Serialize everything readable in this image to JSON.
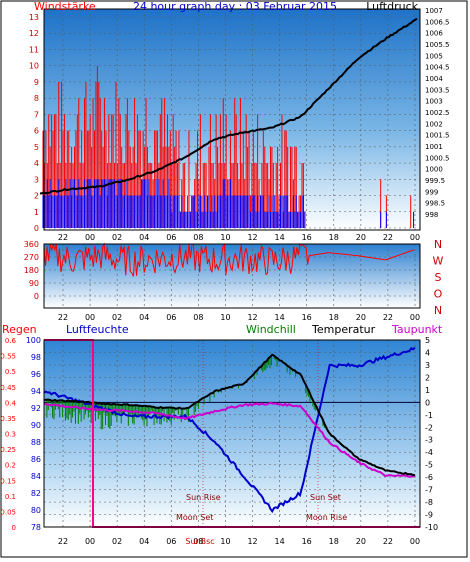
{
  "title": "24 hour graph day : 03 Februar 2015",
  "x_tick_labels": [
    "22",
    "00",
    "02",
    "04",
    "06",
    "08",
    "10",
    "12",
    "14",
    "16",
    "18",
    "20",
    "22",
    "00"
  ],
  "top_panel": {
    "left_label": "Windstärke",
    "right_label": "Luftdruck",
    "left_ticks": [
      "0",
      "1",
      "2",
      "3",
      "4",
      "5",
      "6",
      "7",
      "8",
      "9",
      "10",
      "11",
      "12",
      "13"
    ],
    "right_ticks": [
      "998",
      "998.5",
      "999",
      "999.5",
      "1000",
      "1000.5",
      "1001",
      "1001.5",
      "1002",
      "1002.5",
      "1003",
      "1003.5",
      "1004",
      "1004.5",
      "1005",
      "1005.5",
      "1006",
      "1006.5",
      "1007"
    ],
    "colors": {
      "wind_gust": "#ff0000",
      "wind_avg": "#0000ff",
      "pressure": "#000000",
      "left_label": "#ff0000",
      "right_label": "#000000"
    }
  },
  "dir_panel": {
    "left_ticks": [
      "0",
      "90",
      "180",
      "270",
      "360"
    ],
    "compass": [
      "N",
      "W",
      "S",
      "O",
      "N"
    ],
    "color": "#ff0000"
  },
  "bottom_panel": {
    "labels": {
      "regen": "Regen",
      "luftfeuchte": "Luftfeuchte",
      "windchill": "Windchill",
      "temperatur": "Temperatur",
      "taupunkt": "Taupunkt"
    },
    "rain_ticks": [
      "0",
      "0.05",
      "0.1",
      "0.15",
      "0.2",
      "0.25",
      "0.3",
      "0.35",
      "0.4",
      "0.45",
      "0.5",
      "0.55",
      "0.6"
    ],
    "humidity_ticks": [
      "78",
      "80",
      "82",
      "84",
      "86",
      "88",
      "90",
      "92",
      "94",
      "96",
      "98",
      "100"
    ],
    "temp_ticks": [
      "-10",
      "-9",
      "-8",
      "-7",
      "-6",
      "-5",
      "-4",
      "-3",
      "-2",
      "-1",
      "0",
      "1",
      "2",
      "3",
      "4",
      "5"
    ],
    "annotations": {
      "sun_rise": "Sun Rise",
      "sun_set": "Sun Set",
      "moon_set": "Moon Set",
      "moon_rise": "Moon Rise",
      "sun_bsc": "SunBsc"
    },
    "colors": {
      "regen": "#ff0000",
      "luftfeuchte": "#0000cc",
      "windchill": "#008000",
      "temperatur": "#000000",
      "taupunkt": "#cc00cc",
      "rain_line": "#ff0088"
    }
  },
  "chart_data": [
    {
      "type": "line",
      "title": "24 hour graph day : 03 Februar 2015",
      "x": [
        "22",
        "00",
        "02",
        "04",
        "06",
        "08",
        "10",
        "12",
        "14",
        "16",
        "18",
        "20",
        "22",
        "00"
      ],
      "series": [
        {
          "name": "Luftdruck",
          "values": [
            998.9,
            999.1,
            999.2,
            999.5,
            999.9,
            1000.5,
            1001.3,
            1001.6,
            1001.8,
            1002.3,
            1003.6,
            1004.9,
            1005.8,
            1006.6
          ]
        },
        {
          "name": "Windstärke",
          "values": [
            5,
            5,
            6,
            5,
            5,
            2,
            4,
            4,
            3,
            3,
            0,
            0,
            0,
            0
          ]
        }
      ],
      "ylim_left": [
        0,
        13
      ],
      "ylim_right": [
        998,
        1007
      ]
    },
    {
      "type": "line",
      "x": [
        "22",
        "00",
        "02",
        "04",
        "06",
        "08",
        "10",
        "12",
        "14",
        "16",
        "18",
        "20",
        "22",
        "00"
      ],
      "series": [
        {
          "values": [
            300,
            250,
            280,
            240,
            260,
            270,
            250,
            260,
            240,
            270,
            300,
            280,
            250,
            320
          ]
        }
      ],
      "ylim": [
        0,
        360
      ]
    },
    {
      "type": "line",
      "x": [
        "22",
        "00",
        "02",
        "04",
        "06",
        "08",
        "10",
        "12",
        "14",
        "16",
        "18",
        "20",
        "22",
        "00"
      ],
      "series": [
        {
          "name": "Temperatur",
          "values": [
            0.2,
            0.1,
            -0.1,
            -0.2,
            -0.4,
            -0.5,
            0.9,
            1.5,
            3.8,
            2.2,
            -2.5,
            -4.5,
            -5.5,
            -5.8
          ]
        },
        {
          "name": "Windchill",
          "values": [
            -0.5,
            -1,
            -1.5,
            -1.3,
            -1.2,
            -1,
            1,
            2,
            3.5,
            2,
            -2.5,
            -4.5,
            -5.5,
            -5.8
          ]
        },
        {
          "name": "Taupunkt",
          "values": [
            -0.1,
            -0.4,
            -0.6,
            -0.7,
            -0.9,
            -1.3,
            -0.7,
            -0.2,
            -0.1,
            -0.3,
            -3.2,
            -4.8,
            -5.9,
            -5.9
          ]
        },
        {
          "name": "Luftfeuchte",
          "values": [
            94,
            93,
            92,
            91,
            91,
            91,
            88,
            84,
            80,
            82,
            97,
            97,
            98,
            99
          ]
        },
        {
          "name": "Regen",
          "values": [
            0.6,
            0,
            0,
            0,
            0,
            0,
            0,
            0,
            0,
            0,
            0,
            0,
            0,
            0
          ]
        }
      ],
      "ylim_temp": [
        -10,
        5
      ],
      "ylim_humidity": [
        78,
        100
      ],
      "ylim_rain": [
        0,
        0.6
      ]
    }
  ]
}
